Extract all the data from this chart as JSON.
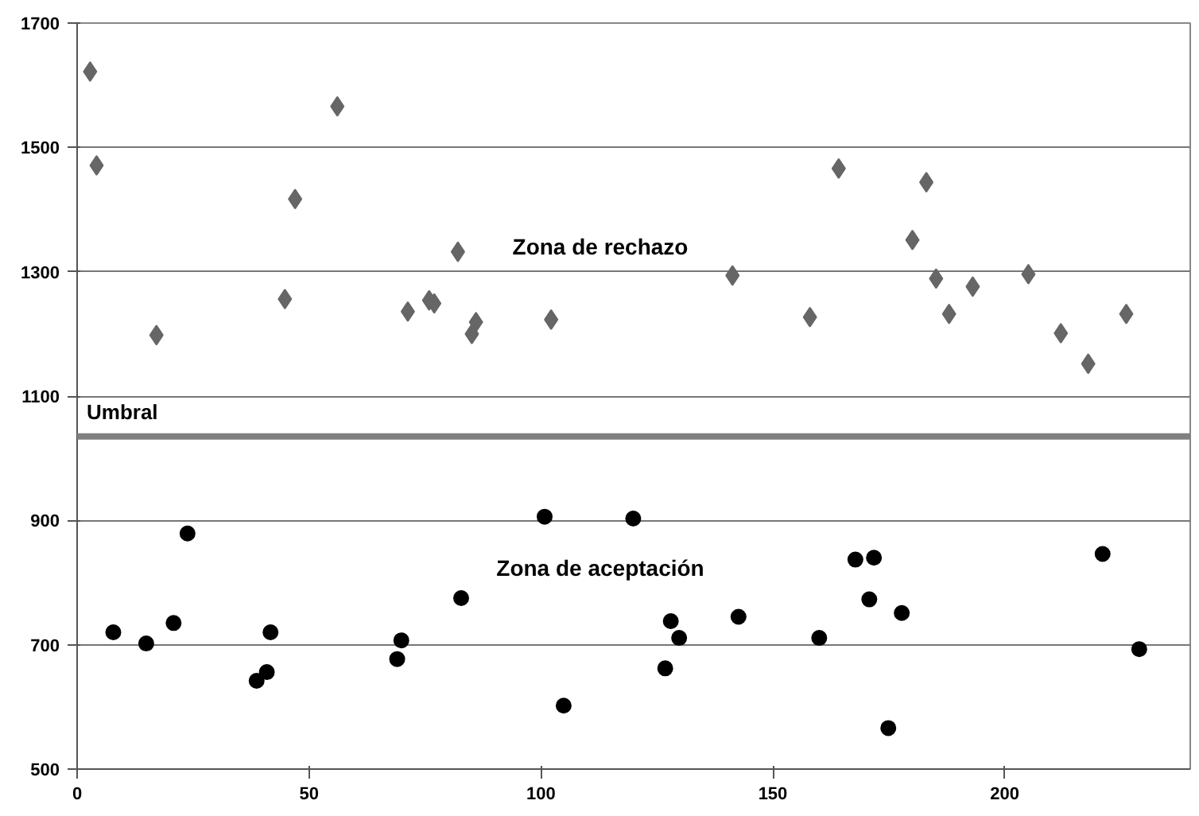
{
  "chart_data": {
    "type": "scatter",
    "xlim": [
      0,
      240
    ],
    "ylim": [
      500,
      1700
    ],
    "xticks": [
      0,
      50,
      100,
      150,
      200
    ],
    "yticks": [
      500,
      700,
      900,
      1100,
      1300,
      1500,
      1700
    ],
    "grid": "y",
    "series": [
      {
        "color": "#666666",
        "marker": "diamond",
        "x": [
          2.8,
          4.2,
          17.1,
          44.8,
          47,
          56.1,
          71.3,
          75.9,
          77,
          82.1,
          85.1,
          86,
          102.2,
          141.3,
          158,
          164.2,
          180.1,
          183.1,
          185.2,
          188,
          193.1,
          205.1,
          212.1,
          218,
          226.2
        ],
        "values": [
          1622,
          1471,
          1198,
          1256,
          1417,
          1566,
          1236,
          1254,
          1249,
          1332,
          1200,
          1219,
          1223,
          1294,
          1227,
          1466,
          1351,
          1444,
          1289,
          1232,
          1276,
          1296,
          1201,
          1152,
          1232
        ]
      },
      {
        "color": "#000000",
        "marker": "circle",
        "x": [
          7.8,
          14.9,
          20.8,
          23.8,
          38.7,
          40.9,
          41.7,
          69,
          69.9,
          82.8,
          100.8,
          104.9,
          119.9,
          126.8,
          128,
          129.8,
          142.6,
          160,
          167.8,
          171.8,
          170.8,
          177.8,
          174.9,
          221.1,
          229
        ],
        "values": [
          720,
          702,
          735,
          879,
          642,
          656,
          720,
          677,
          707,
          775,
          906,
          602,
          903,
          662,
          738,
          711,
          745,
          711,
          837,
          840,
          773,
          751,
          566,
          846,
          693
        ]
      }
    ],
    "ref_lines": [
      {
        "axis": "y",
        "value": 1035,
        "label": "Umbral",
        "color": "#808080"
      }
    ],
    "annotations": [
      "Zona de rechazo",
      "Zona de aceptación"
    ]
  }
}
